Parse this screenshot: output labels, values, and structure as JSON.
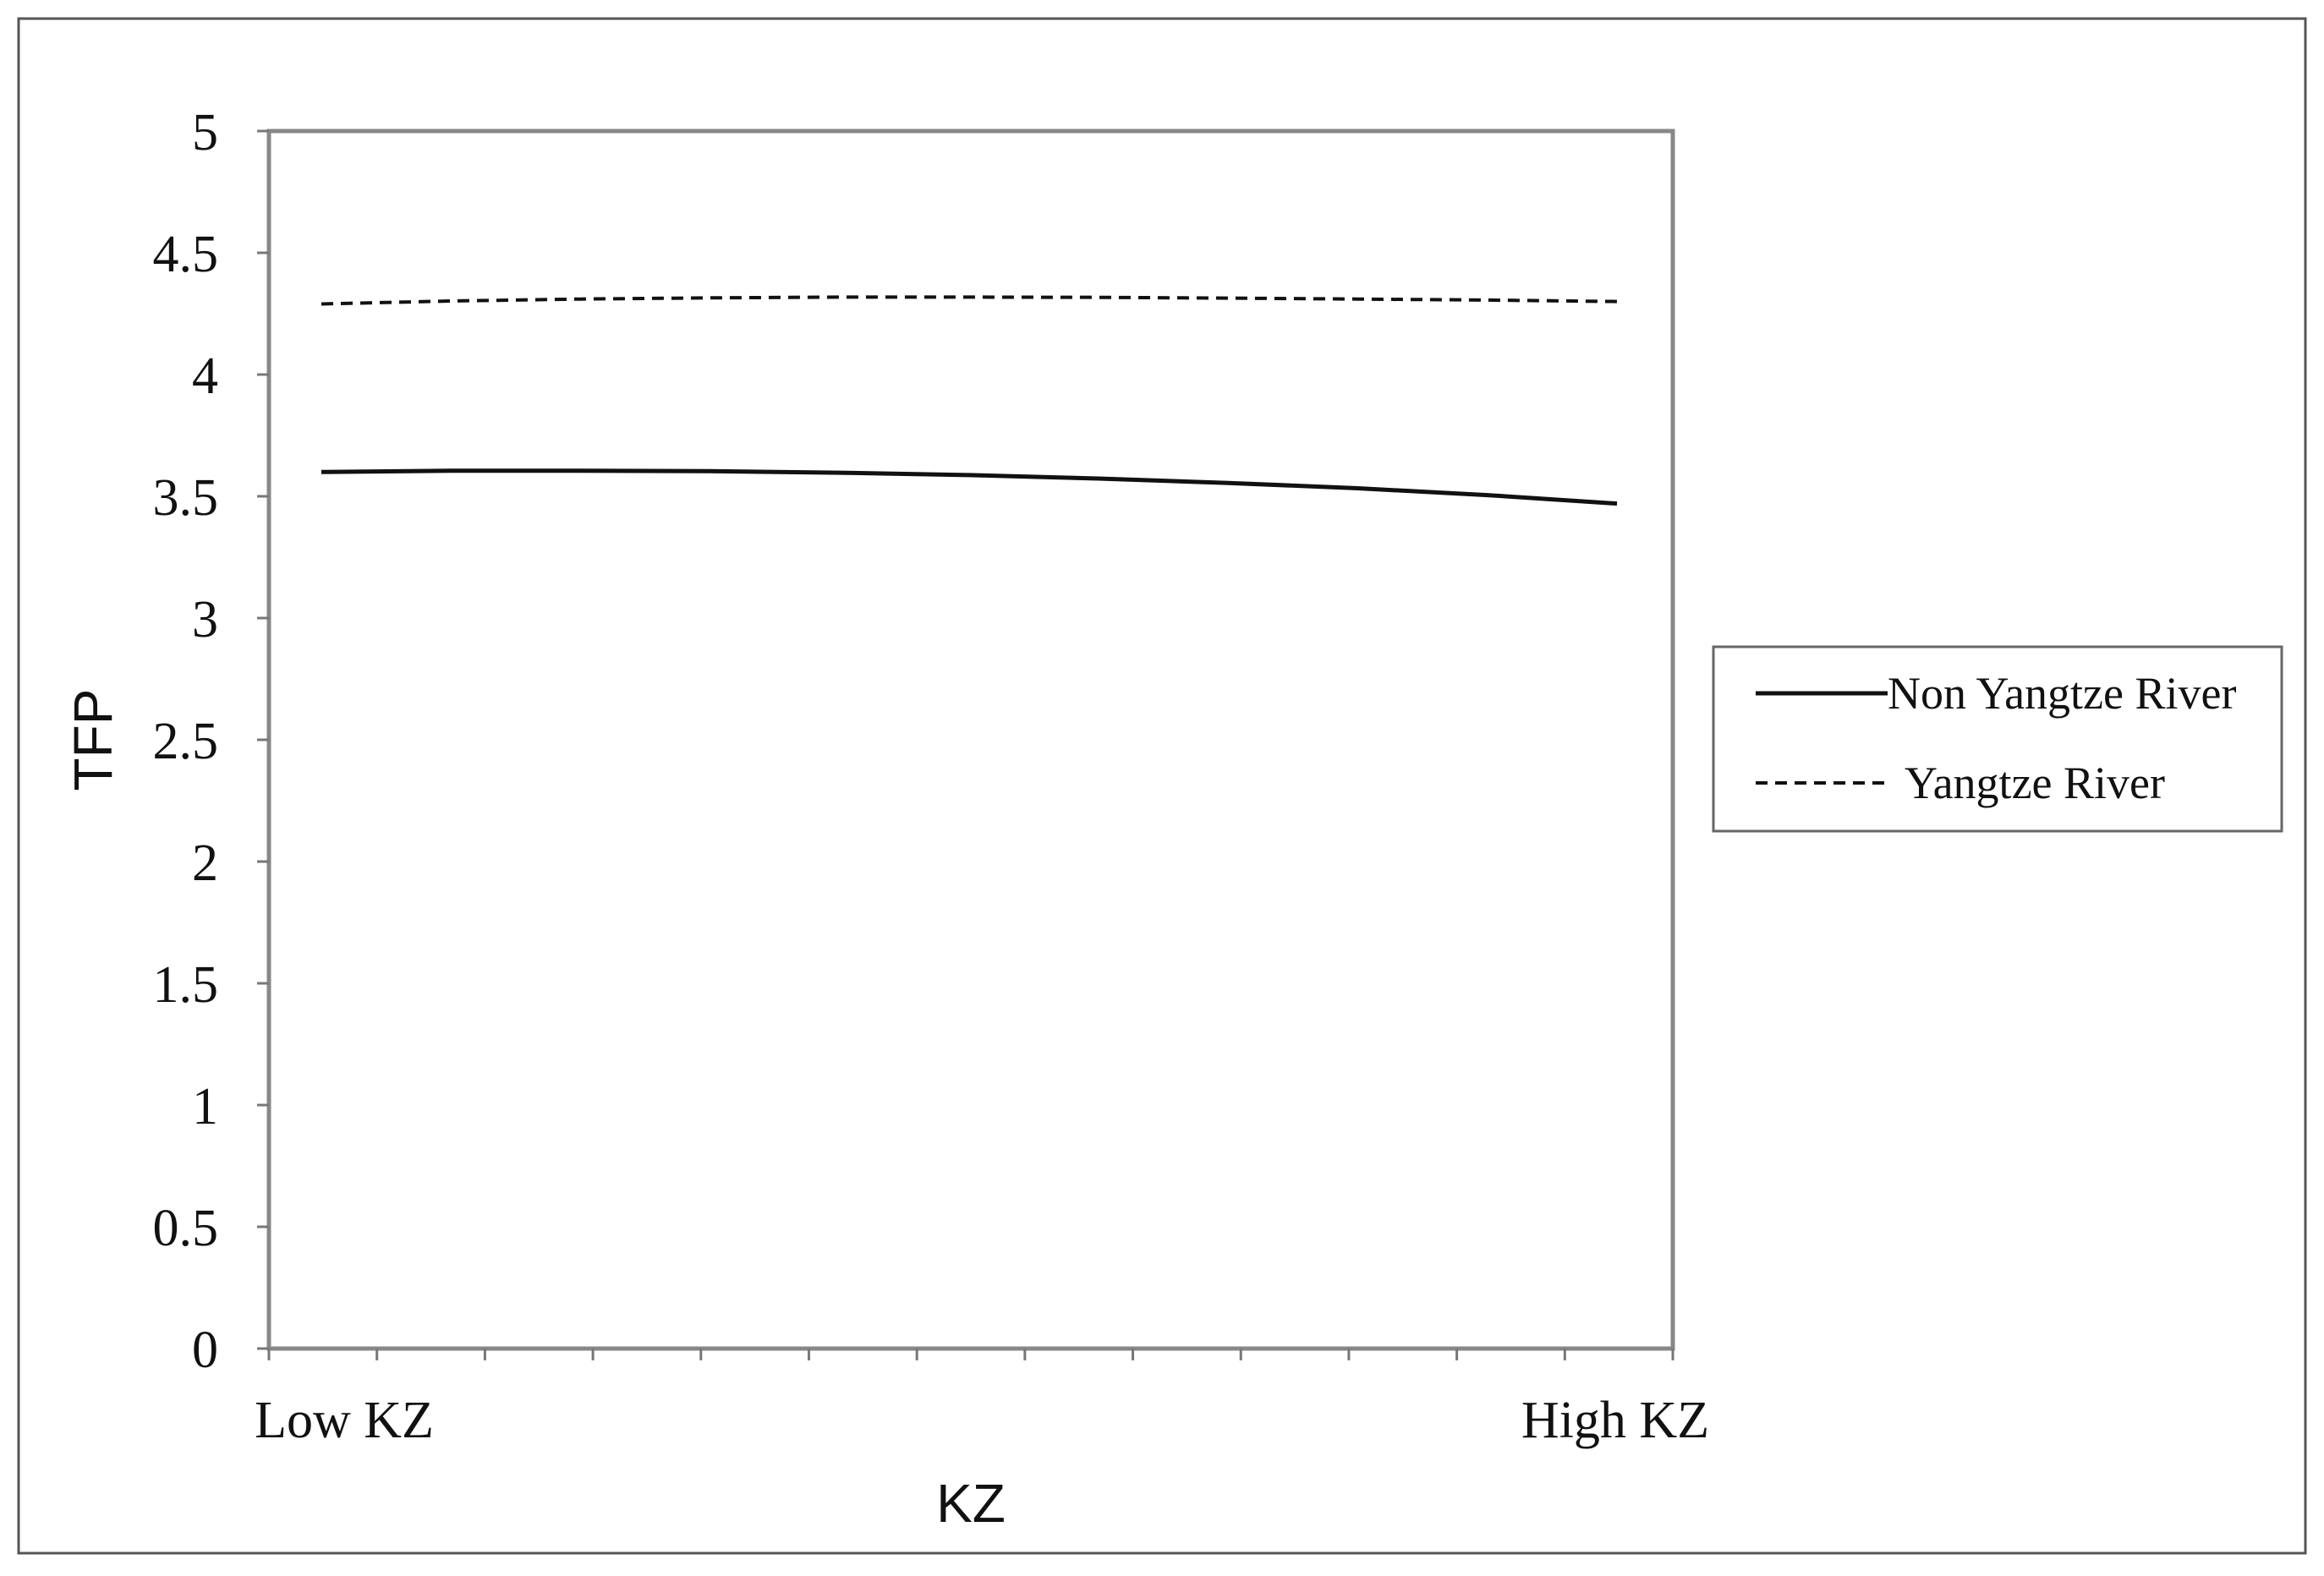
{
  "chart_data": {
    "type": "line",
    "title": "",
    "xlabel": "KZ",
    "ylabel": "TFP",
    "x_tick_labels": [
      "Low KZ",
      "High KZ"
    ],
    "ylim": [
      0,
      5
    ],
    "y_ticks": [
      "0",
      "0.5",
      "1",
      "1.5",
      "2",
      "2.5",
      "3",
      "3.5",
      "4",
      "4.5",
      "5"
    ],
    "grid": false,
    "legend_position": "right",
    "series": [
      {
        "name": "Non Yangtze River",
        "style": "solid",
        "color": "#111111",
        "x": [
          0,
          0.1,
          0.2,
          0.3,
          0.4,
          0.5,
          0.6,
          0.7,
          0.8,
          0.9,
          1.0
        ],
        "values": [
          3.6,
          3.605,
          3.605,
          3.603,
          3.597,
          3.587,
          3.573,
          3.555,
          3.533,
          3.505,
          3.47
        ]
      },
      {
        "name": "Yangtze River",
        "style": "dashed",
        "color": "#111111",
        "x": [
          0,
          0.1,
          0.2,
          0.3,
          0.4,
          0.5,
          0.6,
          0.7,
          0.8,
          0.9,
          1.0
        ],
        "values": [
          4.29,
          4.302,
          4.31,
          4.315,
          4.318,
          4.318,
          4.317,
          4.314,
          4.31,
          4.306,
          4.3
        ]
      }
    ]
  }
}
